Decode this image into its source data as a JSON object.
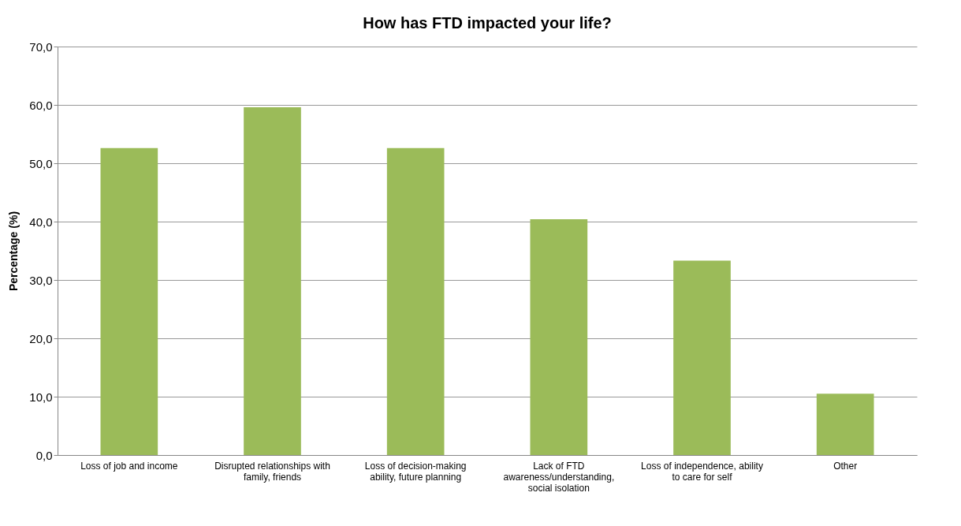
{
  "chart_data": {
    "type": "bar",
    "title": "How has FTD impacted your life?",
    "ylabel": "Percentage (%)",
    "categories": [
      "Loss of job and income",
      "Disrupted relationships with family, friends",
      "Loss of decision-making ability, future planning",
      "Lack of FTD awareness/understanding, social isolation",
      "Loss of independence, ability to care for self",
      "Other"
    ],
    "values": [
      52.6,
      59.6,
      52.6,
      40.4,
      33.3,
      10.5
    ],
    "color": "#9bbb59",
    "ylim": [
      0,
      70
    ],
    "yticks": [
      {
        "value": 0,
        "label": "0,0"
      },
      {
        "value": 10,
        "label": "10,0"
      },
      {
        "value": 20,
        "label": "20,0"
      },
      {
        "value": 30,
        "label": "30,0"
      },
      {
        "value": 40,
        "label": "40,0"
      },
      {
        "value": 50,
        "label": "50,0"
      },
      {
        "value": 60,
        "label": "60,0"
      },
      {
        "value": 70,
        "label": "70,0"
      }
    ],
    "grid": "y"
  }
}
